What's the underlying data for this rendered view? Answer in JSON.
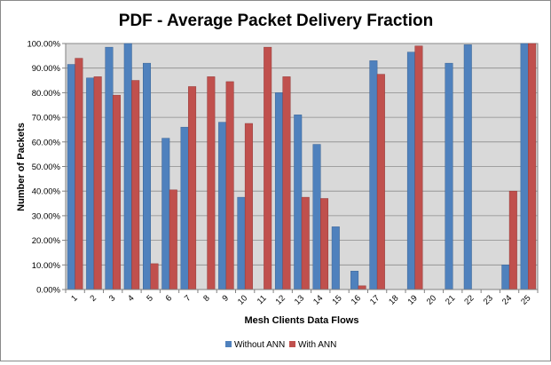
{
  "chart_data": {
    "type": "bar",
    "title": "PDF - Average Packet Delivery Fraction",
    "xlabel": "Mesh Clients Data Flows",
    "ylabel": "Number of Packets",
    "ylim": [
      0,
      100
    ],
    "y_ticks": [
      "0.00%",
      "10.00%",
      "20.00%",
      "30.00%",
      "40.00%",
      "50.00%",
      "60.00%",
      "70.00%",
      "80.00%",
      "90.00%",
      "100.00%"
    ],
    "grid": true,
    "legend": "bottom",
    "categories": [
      "1",
      "2",
      "3",
      "4",
      "5",
      "6",
      "7",
      "8",
      "9",
      "10",
      "11",
      "12",
      "13",
      "14",
      "15",
      "16",
      "17",
      "18",
      "19",
      "20",
      "21",
      "22",
      "23",
      "24",
      "25"
    ],
    "series": [
      {
        "name": "Without ANN",
        "color": "#4F81BD",
        "values": [
          91.5,
          86,
          98.5,
          100,
          92,
          61.5,
          66,
          0,
          68,
          37.5,
          0,
          80,
          71,
          59,
          25.5,
          7.5,
          93,
          0,
          96.5,
          0,
          92,
          99.5,
          0,
          10,
          100
        ]
      },
      {
        "name": "With ANN",
        "color": "#C0504D",
        "values": [
          94,
          86.5,
          79,
          85,
          10.5,
          40.5,
          82.5,
          86.5,
          84.5,
          67.5,
          98.5,
          86.5,
          37.5,
          37,
          0,
          1.5,
          87.5,
          0,
          99,
          0,
          0,
          0,
          0,
          40,
          100
        ]
      }
    ]
  }
}
